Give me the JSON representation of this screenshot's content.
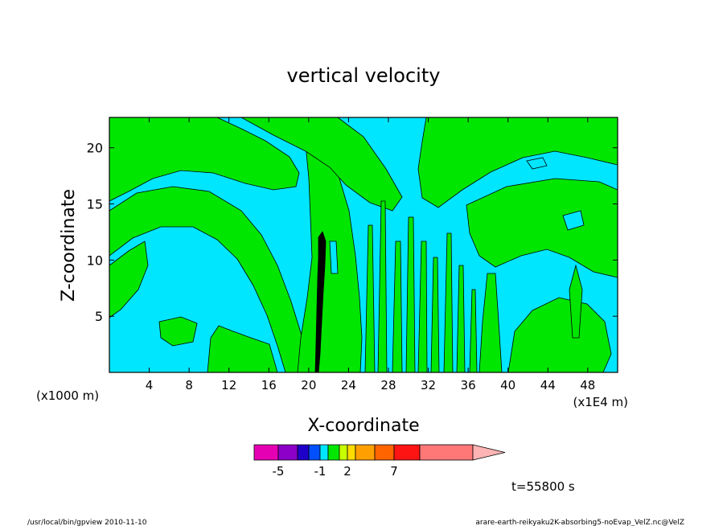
{
  "chart_data": {
    "type": "heatmap",
    "title": "vertical velocity",
    "xlabel": "X-coordinate",
    "ylabel": "Z-coordinate",
    "x_unit_left": "(x1000 m)",
    "x_unit_right": "(x1E4 m)",
    "xlim": [
      0,
      51
    ],
    "ylim": [
      0,
      22.7
    ],
    "x_ticks": [
      4,
      8,
      12,
      16,
      20,
      24,
      28,
      32,
      36,
      40,
      44,
      48
    ],
    "y_ticks": [
      5,
      10,
      15,
      20
    ],
    "legend_placement": "bottom",
    "colorbar": {
      "colors": [
        "#e600b4",
        "#8c00c8",
        "#1e00c8",
        "#0050ff",
        "#00e6ff",
        "#00e600",
        "#c8ff00",
        "#ffdc00",
        "#ffa000",
        "#ff6400",
        "#ff1414",
        "#ff7878",
        "#ffb4b4"
      ],
      "labels": [
        {
          "text": "-5",
          "value": -5
        },
        {
          "text": "-1",
          "value": -1
        },
        {
          "text": "2",
          "value": 2
        },
        {
          "text": "7",
          "value": 7
        }
      ]
    },
    "annotation_time": "t=55800 s",
    "fill_colors": {
      "dominant": "#00e6ff",
      "secondary": "#00e600",
      "core": "#000000"
    }
  },
  "footer": {
    "left": "/usr/local/bin/gpview   2010-11-10",
    "right": "arare-earth-reikyaku2K-absorbing5-noEvap_VelZ.nc@VelZ"
  }
}
